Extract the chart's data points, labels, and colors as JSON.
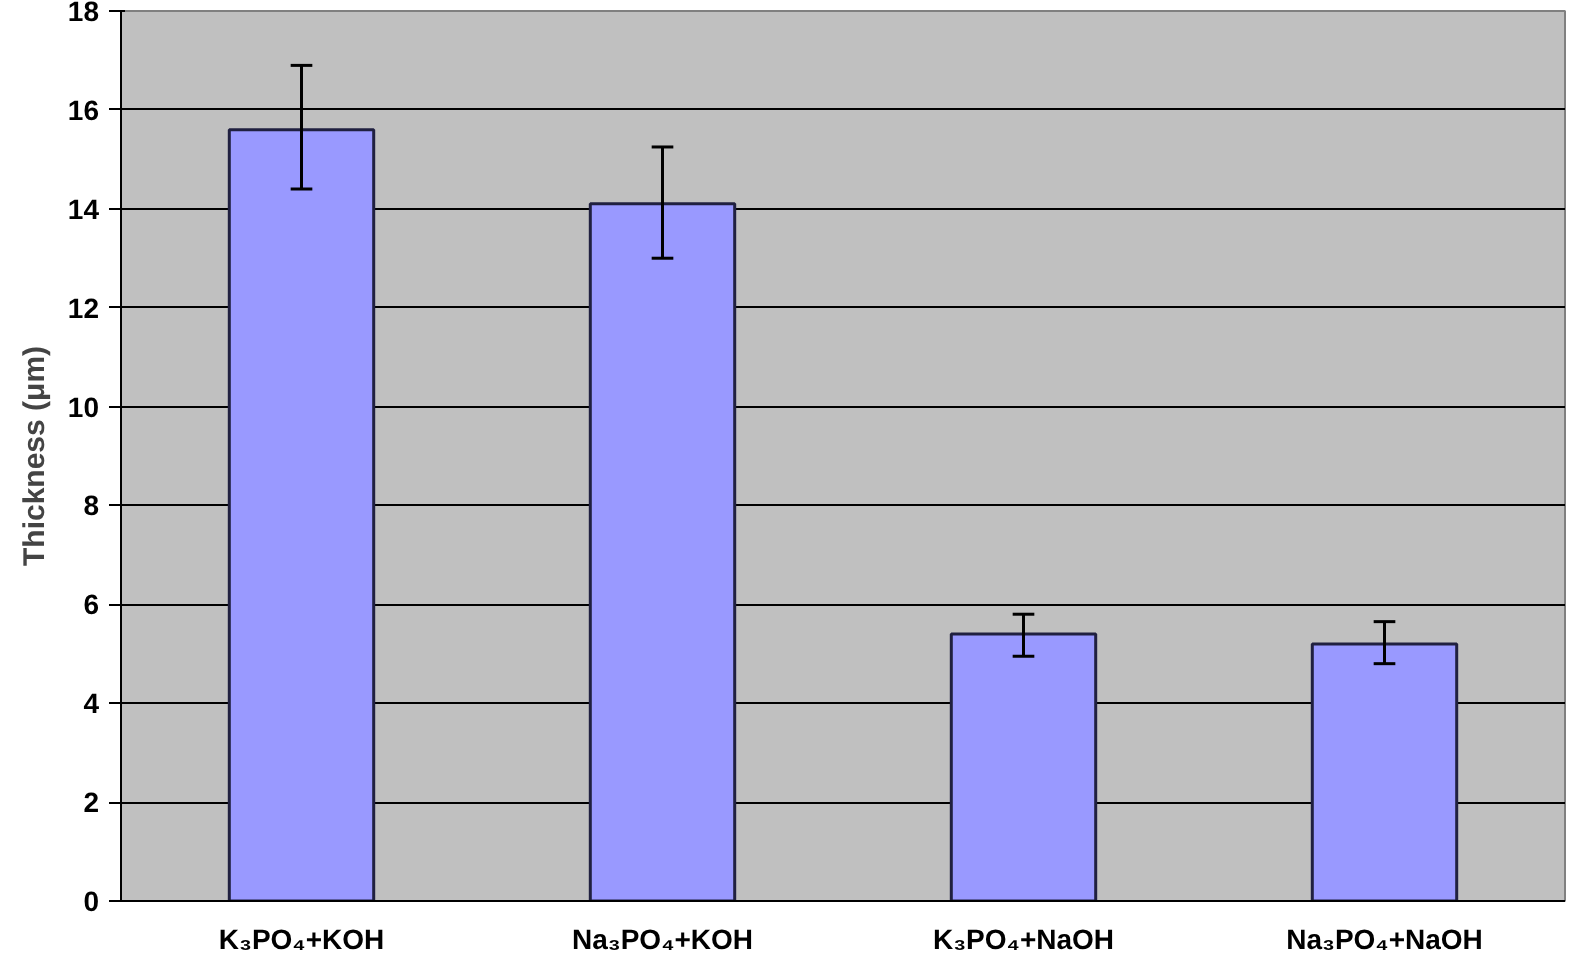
{
  "chart_data": {
    "type": "bar",
    "ylabel": "Thickness (μm)",
    "categories": [
      "K₃PO₄+KOH",
      "Na₃PO₄+KOH",
      "K₃PO₄+NaOH",
      "Na₃PO₄+NaOH"
    ],
    "values": [
      15.6,
      14.1,
      5.4,
      5.2
    ],
    "errors": [
      [
        14.4,
        16.9
      ],
      [
        13.0,
        15.25
      ],
      [
        4.95,
        5.8
      ],
      [
        4.8,
        5.65
      ]
    ],
    "color": "#9999ff",
    "ylim": [
      0,
      18
    ],
    "yticks": [
      0,
      2,
      4,
      6,
      8,
      10,
      12,
      14,
      16,
      18
    ],
    "grid": "y"
  }
}
